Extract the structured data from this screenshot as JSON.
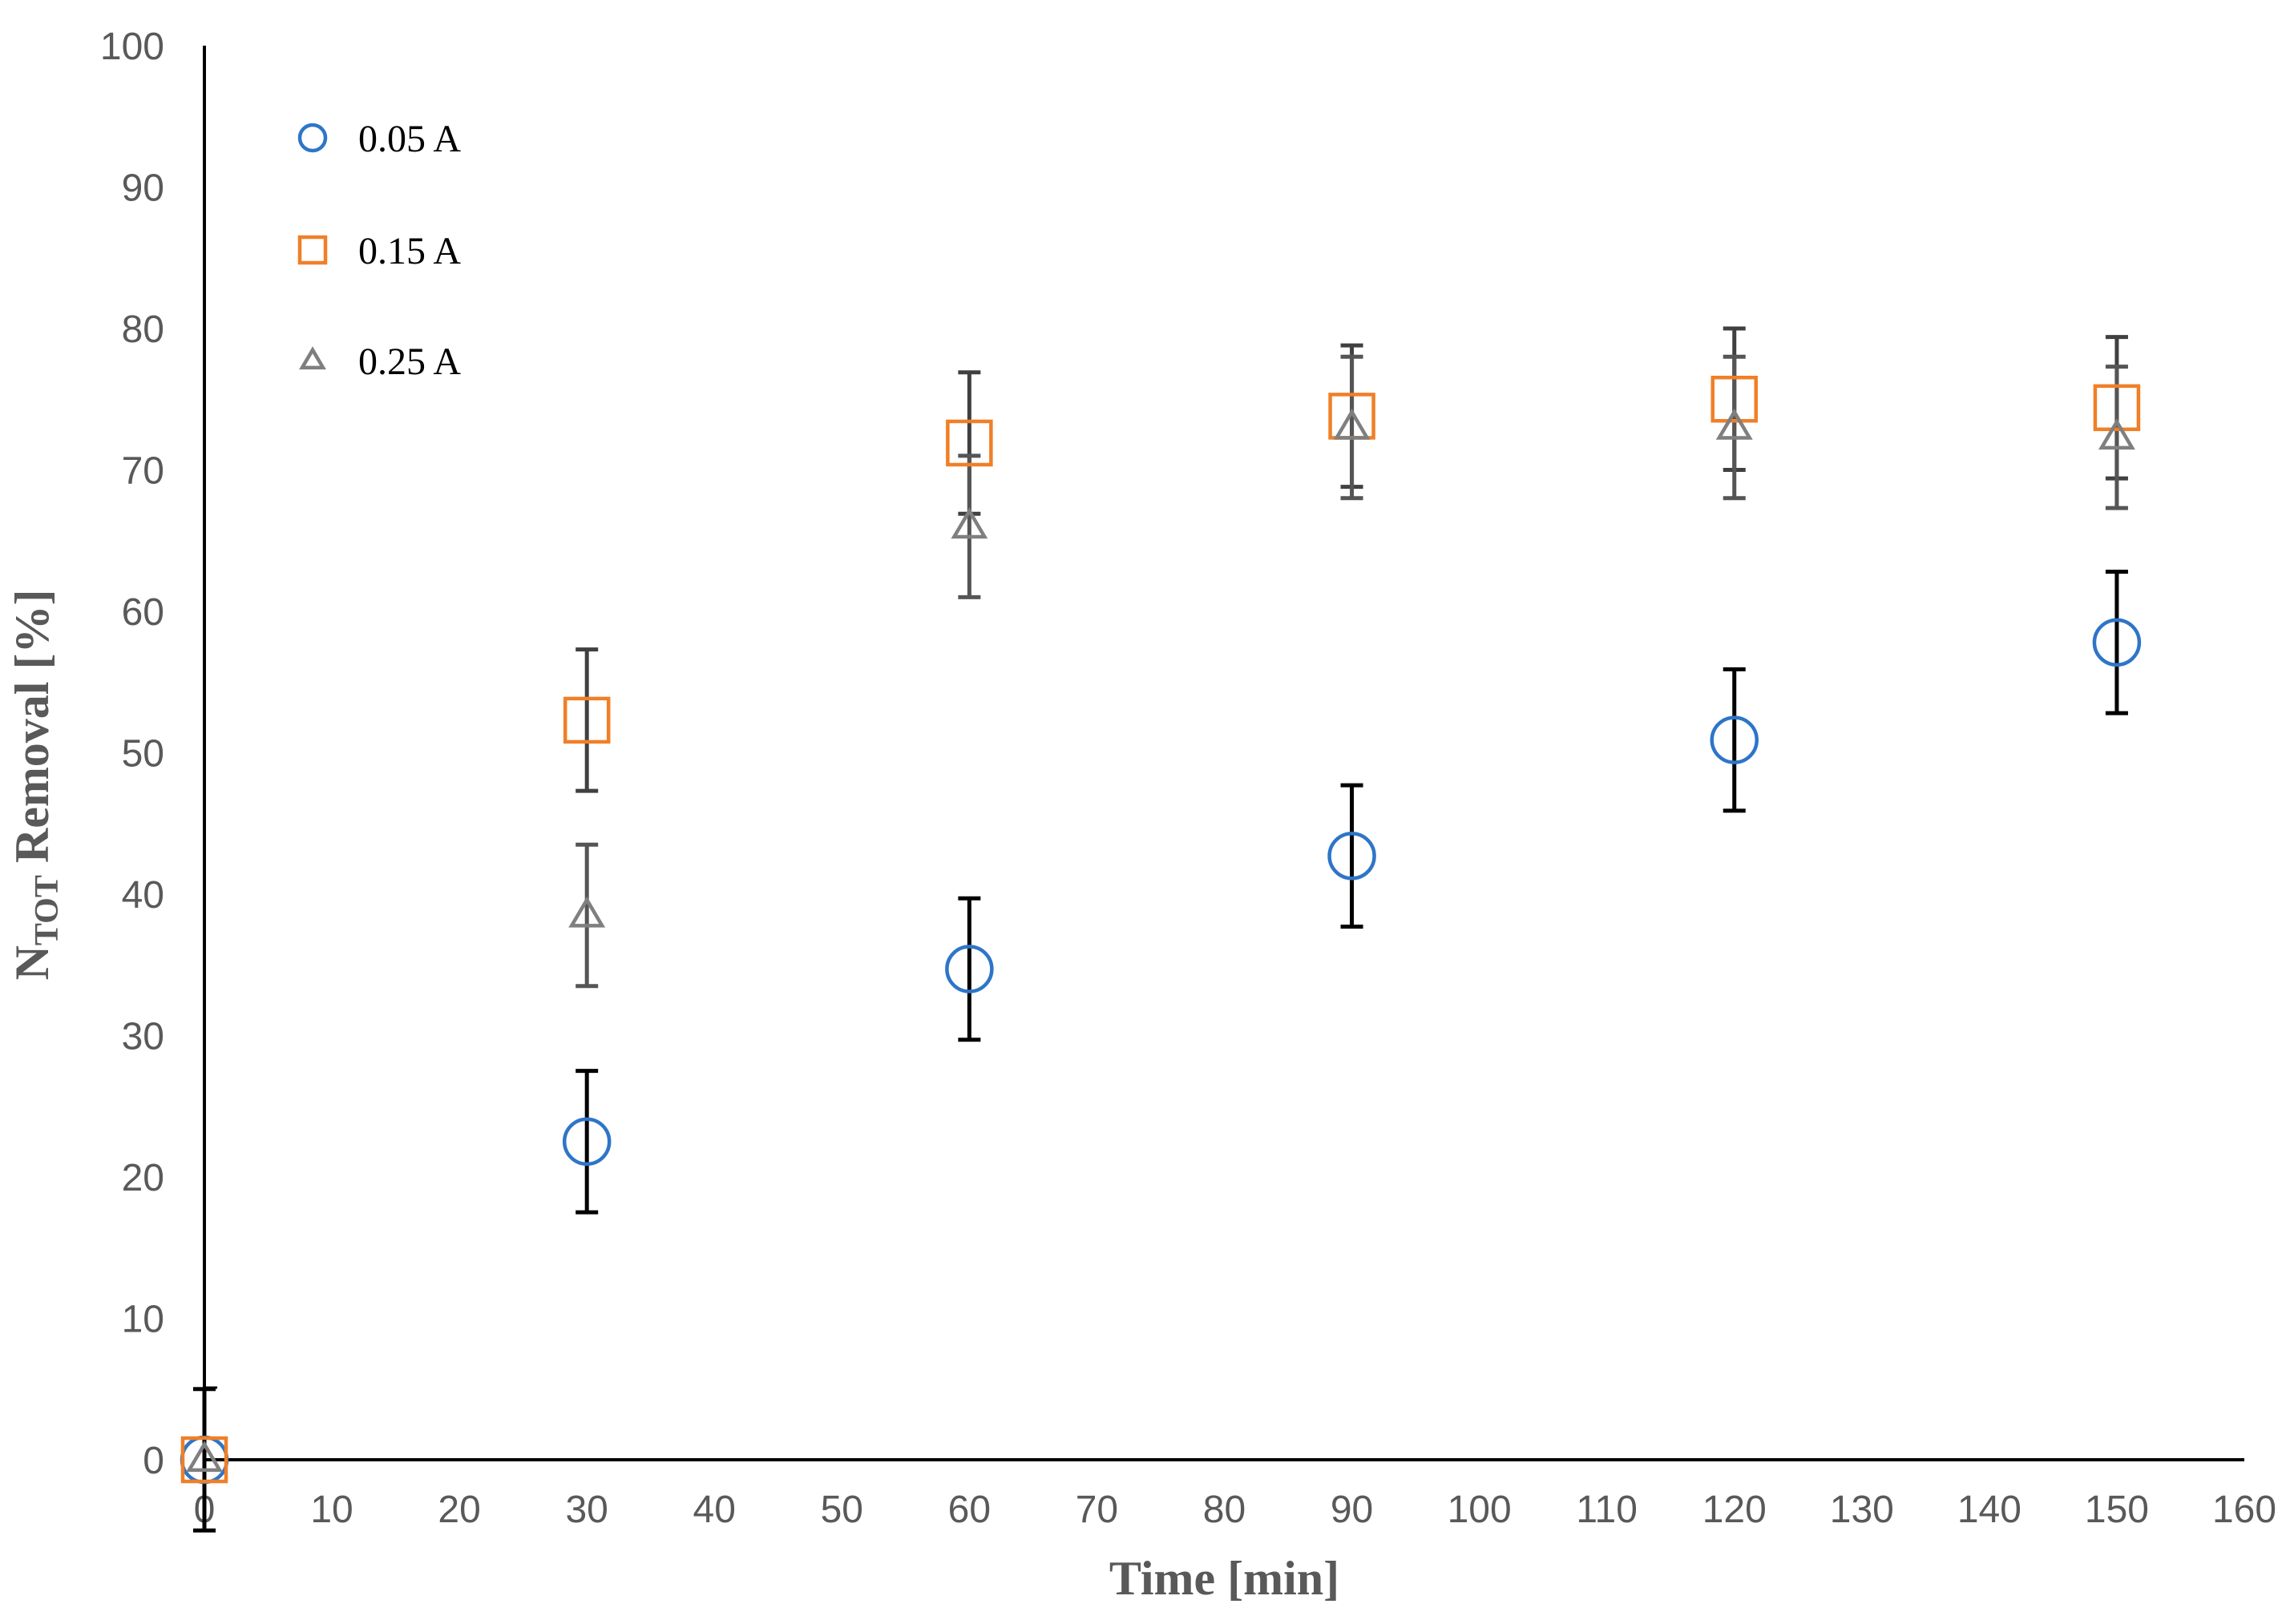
{
  "chart_data": {
    "type": "scatter",
    "title": "",
    "xlabel": "Time [min]",
    "ylabel_main": "N",
    "ylabel_sub": "TOT",
    "ylabel_rest": " Removal [%]",
    "xlim": [
      0,
      160
    ],
    "ylim": [
      0,
      100
    ],
    "xticks": [
      0,
      10,
      20,
      30,
      40,
      50,
      60,
      70,
      80,
      90,
      100,
      110,
      120,
      130,
      140,
      150,
      160
    ],
    "yticks": [
      0,
      10,
      20,
      30,
      40,
      50,
      60,
      70,
      80,
      90,
      100
    ],
    "grid": false,
    "legend_position": "top-left",
    "series": [
      {
        "name": "0.05 A",
        "marker": "circle",
        "color": "#2e75c8",
        "error_color": "#000000",
        "x": [
          0,
          30,
          60,
          90,
          120,
          150
        ],
        "y": [
          0,
          22.5,
          34.7,
          42.7,
          50.9,
          57.8
        ],
        "error": [
          5,
          5,
          5,
          5,
          5,
          5
        ]
      },
      {
        "name": "0.15 A",
        "marker": "square",
        "color": "#f07f27",
        "error_color": "#404040",
        "x": [
          0,
          30,
          60,
          90,
          120,
          150
        ],
        "y": [
          0,
          52.3,
          71.9,
          73.8,
          75.0,
          74.4
        ],
        "error": [
          0,
          5,
          5,
          5,
          5,
          5
        ]
      },
      {
        "name": "0.25 A",
        "marker": "triangle",
        "color": "#7f7f7f",
        "error_color": "#555555",
        "x": [
          0,
          30,
          60,
          90,
          120,
          150
        ],
        "y": [
          0,
          38.5,
          66.0,
          73.0,
          73.0,
          72.3
        ],
        "error": [
          0,
          5,
          5,
          5,
          5,
          5
        ]
      }
    ]
  }
}
